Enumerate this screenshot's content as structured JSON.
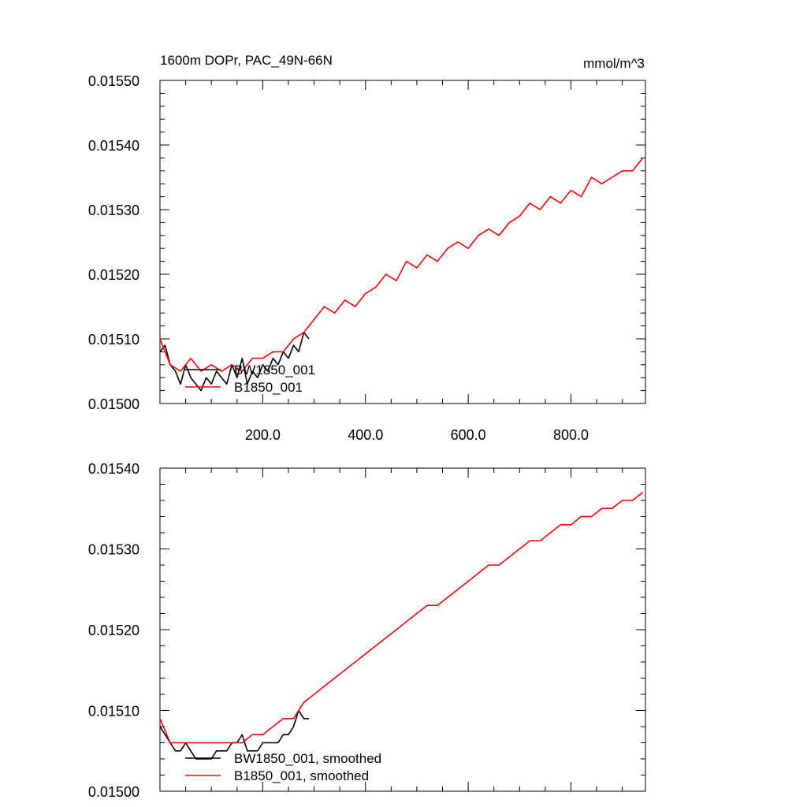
{
  "chart_data": [
    {
      "type": "line",
      "title": "1600m DOPr, PAC_49N-66N",
      "units": "mmol/m^3",
      "xlim": [
        0,
        945
      ],
      "ylim": [
        0.015,
        0.0155
      ],
      "x_ticks": [
        200,
        400,
        600,
        800
      ],
      "x_tick_labels": [
        "200.0",
        "400.0",
        "600.0",
        "800.0"
      ],
      "y_ticks": [
        0.015,
        0.0151,
        0.0152,
        0.0153,
        0.0154,
        0.0155
      ],
      "y_tick_labels": [
        "0.01500",
        "0.01510",
        "0.01520",
        "0.01530",
        "0.01540",
        "0.01550"
      ],
      "legend": [
        "BW1850_001",
        "B1850_001"
      ],
      "legend_position": "bottom-left",
      "series": [
        {
          "name": "BW1850_001",
          "color": "#000000",
          "x": [
            0,
            10,
            20,
            30,
            40,
            50,
            60,
            70,
            80,
            90,
            100,
            110,
            120,
            130,
            140,
            150,
            160,
            170,
            180,
            190,
            200,
            210,
            220,
            230,
            240,
            250,
            260,
            270,
            280,
            290
          ],
          "y": [
            0.01508,
            0.01509,
            0.01506,
            0.01505,
            0.01503,
            0.01506,
            0.01504,
            0.01503,
            0.01502,
            0.01504,
            0.01503,
            0.01505,
            0.01504,
            0.01503,
            0.01506,
            0.01504,
            0.01507,
            0.01503,
            0.01505,
            0.01504,
            0.01506,
            0.01505,
            0.01507,
            0.01506,
            0.01508,
            0.01507,
            0.01509,
            0.01508,
            0.01511,
            0.0151
          ]
        },
        {
          "name": "B1850_001",
          "color": "#ff0000",
          "x": [
            0,
            20,
            40,
            60,
            80,
            100,
            120,
            140,
            160,
            180,
            200,
            220,
            240,
            260,
            280,
            300,
            320,
            340,
            360,
            380,
            400,
            420,
            440,
            460,
            480,
            500,
            520,
            540,
            560,
            580,
            600,
            620,
            640,
            660,
            680,
            700,
            720,
            740,
            760,
            780,
            800,
            820,
            840,
            860,
            880,
            900,
            920,
            940
          ],
          "y": [
            0.0151,
            0.01506,
            0.01505,
            0.01507,
            0.01505,
            0.01506,
            0.01505,
            0.01506,
            0.01505,
            0.01507,
            0.01507,
            0.01508,
            0.01508,
            0.0151,
            0.01511,
            0.01513,
            0.01515,
            0.01514,
            0.01516,
            0.01515,
            0.01517,
            0.01518,
            0.0152,
            0.01519,
            0.01522,
            0.01521,
            0.01523,
            0.01522,
            0.01524,
            0.01525,
            0.01524,
            0.01526,
            0.01527,
            0.01526,
            0.01528,
            0.01529,
            0.01531,
            0.0153,
            0.01532,
            0.01531,
            0.01533,
            0.01532,
            0.01535,
            0.01534,
            0.01535,
            0.01536,
            0.01536,
            0.01538
          ]
        }
      ]
    },
    {
      "type": "line",
      "title": "",
      "xlim": [
        0,
        945
      ],
      "ylim": [
        0.015,
        0.0154
      ],
      "x_ticks": [
        200,
        400,
        600,
        800
      ],
      "x_tick_labels": [],
      "y_ticks": [
        0.015,
        0.0151,
        0.0152,
        0.0153,
        0.0154
      ],
      "y_tick_labels": [
        "0.01500",
        "0.01510",
        "0.01520",
        "0.01530",
        "0.01540"
      ],
      "legend": [
        "BW1850_001, smoothed",
        "B1850_001, smoothed"
      ],
      "legend_position": "bottom-left",
      "series": [
        {
          "name": "BW1850_001, smoothed",
          "color": "#000000",
          "x": [
            0,
            10,
            20,
            30,
            40,
            50,
            60,
            70,
            80,
            90,
            100,
            110,
            120,
            130,
            140,
            150,
            160,
            170,
            180,
            190,
            200,
            210,
            220,
            230,
            240,
            250,
            260,
            270,
            280,
            290
          ],
          "y": [
            0.01508,
            0.01507,
            0.01506,
            0.01505,
            0.01505,
            0.01506,
            0.01505,
            0.01504,
            0.01504,
            0.01504,
            0.01504,
            0.01505,
            0.01505,
            0.01505,
            0.01506,
            0.01506,
            0.01507,
            0.01505,
            0.01505,
            0.01505,
            0.01506,
            0.01506,
            0.01506,
            0.01506,
            0.01507,
            0.01507,
            0.01508,
            0.0151,
            0.01509,
            0.01509
          ]
        },
        {
          "name": "B1850_001, smoothed",
          "color": "#ff0000",
          "x": [
            0,
            20,
            40,
            60,
            80,
            100,
            120,
            140,
            160,
            180,
            200,
            220,
            240,
            260,
            280,
            300,
            320,
            340,
            360,
            380,
            400,
            420,
            440,
            460,
            480,
            500,
            520,
            540,
            560,
            580,
            600,
            620,
            640,
            660,
            680,
            700,
            720,
            740,
            760,
            780,
            800,
            820,
            840,
            860,
            880,
            900,
            920,
            940
          ],
          "y": [
            0.01509,
            0.01506,
            0.01506,
            0.01506,
            0.01506,
            0.01506,
            0.01506,
            0.01506,
            0.01506,
            0.01507,
            0.01507,
            0.01508,
            0.01509,
            0.01509,
            0.01511,
            0.01512,
            0.01513,
            0.01514,
            0.01515,
            0.01516,
            0.01517,
            0.01518,
            0.01519,
            0.0152,
            0.01521,
            0.01522,
            0.01523,
            0.01523,
            0.01524,
            0.01525,
            0.01526,
            0.01527,
            0.01528,
            0.01528,
            0.01529,
            0.0153,
            0.01531,
            0.01531,
            0.01532,
            0.01533,
            0.01533,
            0.01534,
            0.01534,
            0.01535,
            0.01535,
            0.01536,
            0.01536,
            0.01537
          ]
        }
      ]
    }
  ]
}
